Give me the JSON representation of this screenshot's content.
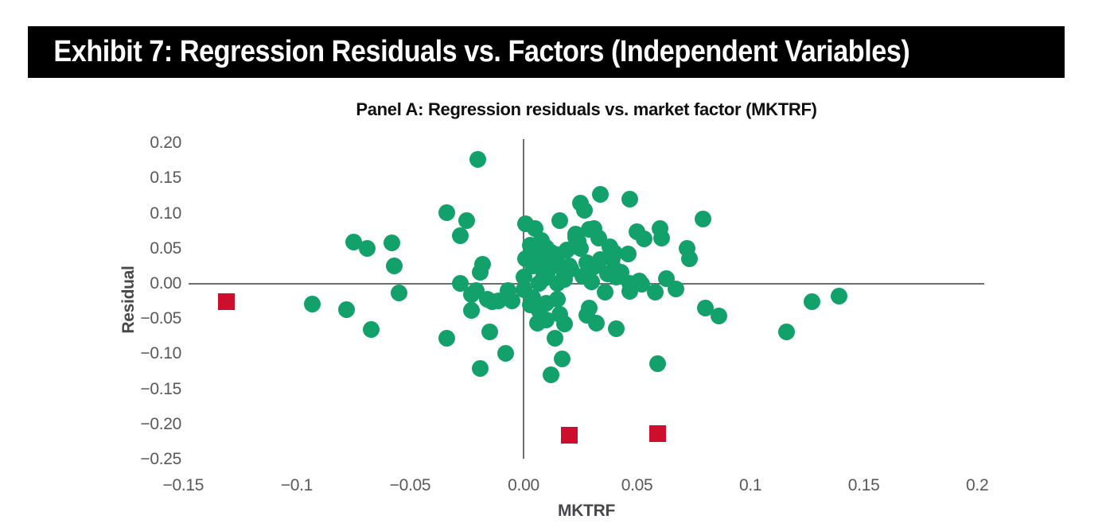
{
  "exhibit": {
    "title": "Exhibit 7: Regression Residuals vs. Factors (Independent Variables)"
  },
  "panel": {
    "title": "Panel A: Regression residuals vs. market factor (MKTRF)"
  },
  "colors": {
    "banner_bg": "#000000",
    "banner_text": "#ffffff",
    "residual_green": "#12a06b",
    "outlier_red": "#ce0e2d",
    "axis_line": "#6d6e71",
    "tick_text": "#58595b",
    "axis_title_text": "#47484b"
  },
  "chart_data": {
    "type": "scatter",
    "title": "Panel A: Regression residuals vs. market factor (MKTRF)",
    "xlabel": "MKTRF",
    "ylabel": "Residual",
    "xlim": [
      -0.15,
      0.2
    ],
    "ylim": [
      -0.25,
      0.2
    ],
    "grid": false,
    "legend": false,
    "x_ticks": [
      -0.15,
      -0.1,
      -0.05,
      0,
      0.05,
      0.1,
      0.15,
      0.2
    ],
    "x_tick_labels": [
      "−0.15",
      "−0.1",
      "−0.05",
      "0.00",
      "0.05",
      "0.1",
      "0.15",
      "0.2"
    ],
    "y_ticks": [
      0.2,
      0.15,
      0.1,
      0.05,
      0,
      -0.05,
      -0.1,
      -0.15,
      -0.2,
      -0.25
    ],
    "y_tick_labels": [
      "0.20",
      "0.15",
      "0.10",
      "0.05",
      "0.00",
      "−0.05",
      "−0.10",
      "−0.15",
      "−0.20",
      "−0.25"
    ],
    "series": [
      {
        "name": "residuals",
        "marker": "circle",
        "color": "#12a06b",
        "points": [
          [
            -0.02,
            0.177
          ],
          [
            -0.034,
            0.101
          ],
          [
            -0.025,
            0.09
          ],
          [
            -0.028,
            0.069
          ],
          [
            -0.075,
            0.059
          ],
          [
            -0.069,
            0.05
          ],
          [
            -0.058,
            0.058
          ],
          [
            -0.057,
            0.026
          ],
          [
            -0.018,
            0.028
          ],
          [
            -0.019,
            0.016
          ],
          [
            -0.028,
            0.001
          ],
          [
            -0.093,
            -0.029
          ],
          [
            -0.078,
            -0.037
          ],
          [
            -0.067,
            -0.065
          ],
          [
            -0.055,
            -0.013
          ],
          [
            -0.034,
            -0.077
          ],
          [
            -0.023,
            -0.015
          ],
          [
            -0.023,
            -0.038
          ],
          [
            -0.016,
            -0.022
          ],
          [
            -0.015,
            -0.069
          ],
          [
            -0.019,
            -0.12
          ],
          [
            -0.008,
            -0.099
          ],
          [
            -0.007,
            -0.01
          ],
          [
            -0.021,
            -0.01
          ],
          [
            -0.014,
            -0.025
          ],
          [
            -0.011,
            -0.024
          ],
          [
            -0.005,
            -0.024
          ],
          [
            0.0,
            -0.009
          ],
          [
            0.003,
            -0.03
          ],
          [
            0.004,
            -0.02
          ],
          [
            0.007,
            -0.038
          ],
          [
            0.01,
            -0.028
          ],
          [
            0.015,
            -0.022
          ],
          [
            0.016,
            -0.043
          ],
          [
            0.01,
            -0.051
          ],
          [
            0.006,
            -0.056
          ],
          [
            0.018,
            -0.057
          ],
          [
            0.014,
            -0.077
          ],
          [
            0.017,
            -0.107
          ],
          [
            0.012,
            -0.129
          ],
          [
            0.028,
            -0.045
          ],
          [
            0.032,
            -0.056
          ],
          [
            0.029,
            -0.034
          ],
          [
            0.036,
            -0.012
          ],
          [
            0.041,
            -0.064
          ],
          [
            0.047,
            -0.011
          ],
          [
            0.058,
            -0.012
          ],
          [
            0.059,
            -0.114
          ],
          [
            0.067,
            -0.007
          ],
          [
            0.08,
            -0.035
          ],
          [
            0.086,
            -0.046
          ],
          [
            0.116,
            -0.068
          ],
          [
            0.127,
            -0.026
          ],
          [
            0.139,
            -0.018
          ],
          [
            0.034,
            0.127
          ],
          [
            0.047,
            0.121
          ],
          [
            0.025,
            0.115
          ],
          [
            0.027,
            0.105
          ],
          [
            0.016,
            0.09
          ],
          [
            0.001,
            0.085
          ],
          [
            0.005,
            0.079
          ],
          [
            0.079,
            0.092
          ],
          [
            0.05,
            0.074
          ],
          [
            0.053,
            0.064
          ],
          [
            0.06,
            0.079
          ],
          [
            0.061,
            0.065
          ],
          [
            0.031,
            0.079
          ],
          [
            0.033,
            0.065
          ],
          [
            0.023,
            0.071
          ],
          [
            0.024,
            0.06
          ],
          [
            0.029,
            0.078
          ],
          [
            0.023,
            0.066
          ],
          [
            0.008,
            0.062
          ],
          [
            0.003,
            0.055
          ],
          [
            0.019,
            0.048
          ],
          [
            0.025,
            0.05
          ],
          [
            0.01,
            0.052
          ],
          [
            0.015,
            0.041
          ],
          [
            0.038,
            0.053
          ],
          [
            0.039,
            0.036
          ],
          [
            0.012,
            0.045
          ],
          [
            0.007,
            0.054
          ],
          [
            0.005,
            0.034
          ],
          [
            0.009,
            0.034
          ],
          [
            0.015,
            0.028
          ],
          [
            0.02,
            0.025
          ],
          [
            0.028,
            0.03
          ],
          [
            0.034,
            0.034
          ],
          [
            0.04,
            0.044
          ],
          [
            0.04,
            0.021
          ],
          [
            0.046,
            0.042
          ],
          [
            0.072,
            0.05
          ],
          [
            0.073,
            0.036
          ],
          [
            0.031,
            0.024
          ],
          [
            0.021,
            0.021
          ],
          [
            0.011,
            0.02
          ],
          [
            0.004,
            0.025
          ],
          [
            0.001,
            0.036
          ],
          [
            0.037,
            0.014
          ],
          [
            0.043,
            0.016
          ],
          [
            0.026,
            0.011
          ],
          [
            0.018,
            0.006
          ],
          [
            0.009,
            0.007
          ],
          [
            0.03,
            0.003
          ],
          [
            0.047,
            0.001
          ],
          [
            0.052,
            -0.001
          ],
          [
            0.063,
            0.007
          ],
          [
            0.018,
            0.013
          ],
          [
            0.009,
            0.013
          ],
          [
            0.007,
            0.001
          ],
          [
            0.015,
            0.001
          ],
          [
            0.051,
            0.004
          ],
          [
            0.0,
            0.01
          ],
          [
            0.041,
            0.01
          ]
        ]
      },
      {
        "name": "outliers",
        "marker": "square",
        "color": "#ce0e2d",
        "points": [
          [
            -0.131,
            -0.026
          ],
          [
            0.02,
            -0.215
          ],
          [
            0.059,
            -0.213
          ]
        ]
      }
    ]
  }
}
